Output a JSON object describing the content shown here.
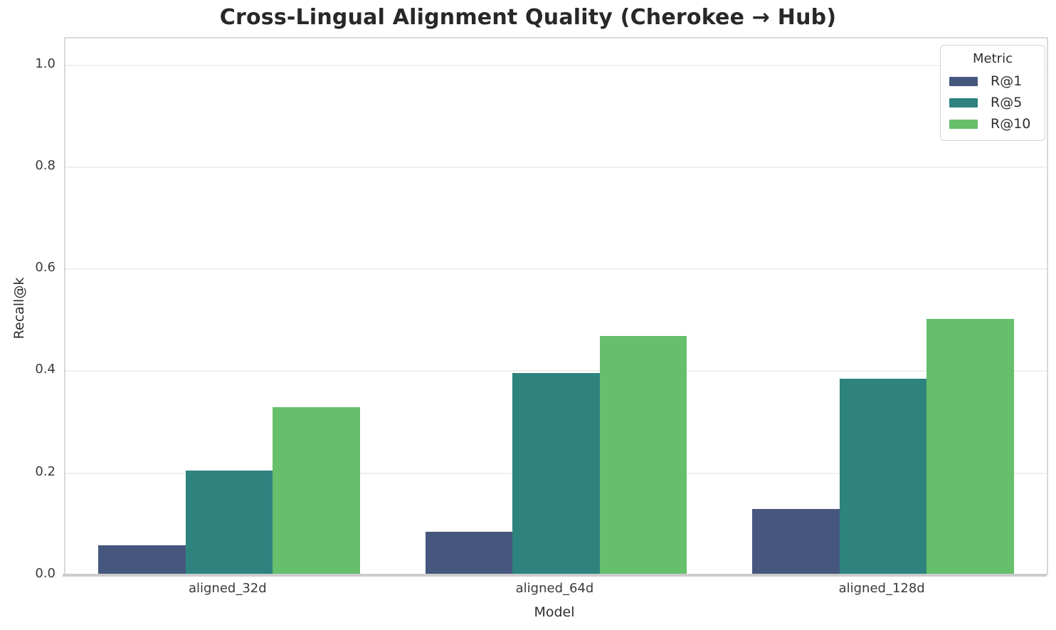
{
  "title": "Cross-Lingual Alignment Quality (Cherokee → Hub)",
  "chart_data": {
    "type": "bar",
    "title": "Cross-Lingual Alignment Quality (Cherokee → Hub)",
    "categories": [
      "aligned_32d",
      "aligned_64d",
      "aligned_128d"
    ],
    "series": [
      {
        "name": "R@1",
        "color": "#46577e",
        "values": [
          0.058,
          0.085,
          0.13
        ]
      },
      {
        "name": "R@5",
        "color": "#2e837f",
        "values": [
          0.205,
          0.396,
          0.385
        ]
      },
      {
        "name": "R@10",
        "color": "#66bf6b",
        "values": [
          0.33,
          0.469,
          0.502
        ]
      }
    ],
    "xlabel": "Model",
    "ylabel": "Recall@k",
    "yticks": [
      0.0,
      0.2,
      0.4,
      0.6,
      0.8,
      1.0
    ],
    "ylim": [
      0,
      1.052
    ],
    "grid": "horizontal",
    "legend_title": "Metric",
    "legend_position": "upper right"
  },
  "palette": {
    "background": "#ffffff",
    "grid_color": "#efefef",
    "spine_color": "#d9d9d9",
    "bottom_spine_color": "#cccccc",
    "text_color": "#262626"
  }
}
